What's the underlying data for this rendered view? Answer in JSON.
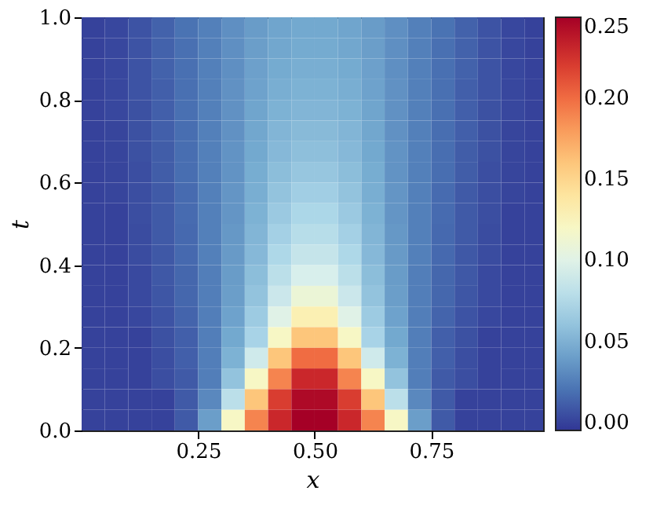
{
  "chart_data": {
    "type": "heatmap",
    "xlabel": "x",
    "ylabel": "t",
    "x": [
      0.025,
      0.075,
      0.125,
      0.175,
      0.225,
      0.275,
      0.325,
      0.375,
      0.425,
      0.475,
      0.525,
      0.575,
      0.625,
      0.675,
      0.725,
      0.775,
      0.825,
      0.875,
      0.925,
      0.975
    ],
    "y": [
      0.975,
      0.925,
      0.875,
      0.825,
      0.775,
      0.725,
      0.675,
      0.625,
      0.575,
      0.525,
      0.475,
      0.425,
      0.375,
      0.325,
      0.275,
      0.225,
      0.175,
      0.125,
      0.075,
      0.025
    ],
    "cells": [
      [
        0,
        0.002,
        0.007,
        0.013,
        0.02,
        0.026,
        0.033,
        0.039,
        0.043,
        0.045,
        0.045,
        0.043,
        0.039,
        0.033,
        0.026,
        0.02,
        0.013,
        0.007,
        0.002,
        0
      ],
      [
        0,
        0.002,
        0.007,
        0.013,
        0.019,
        0.026,
        0.033,
        0.04,
        0.044,
        0.046,
        0.046,
        0.044,
        0.04,
        0.033,
        0.026,
        0.019,
        0.013,
        0.007,
        0.002,
        0
      ],
      [
        0,
        0.002,
        0.007,
        0.013,
        0.019,
        0.026,
        0.033,
        0.041,
        0.046,
        0.048,
        0.048,
        0.046,
        0.041,
        0.033,
        0.026,
        0.019,
        0.013,
        0.007,
        0.002,
        0
      ],
      [
        0,
        0.002,
        0.007,
        0.012,
        0.019,
        0.026,
        0.034,
        0.042,
        0.048,
        0.05,
        0.05,
        0.048,
        0.042,
        0.034,
        0.026,
        0.019,
        0.012,
        0.007,
        0.002,
        0
      ],
      [
        0,
        0.002,
        0.006,
        0.012,
        0.019,
        0.026,
        0.034,
        0.043,
        0.05,
        0.052,
        0.052,
        0.05,
        0.043,
        0.034,
        0.026,
        0.019,
        0.012,
        0.006,
        0.002,
        0
      ],
      [
        0,
        0.001,
        0.006,
        0.012,
        0.018,
        0.026,
        0.034,
        0.044,
        0.052,
        0.055,
        0.055,
        0.052,
        0.044,
        0.034,
        0.026,
        0.018,
        0.012,
        0.006,
        0.001,
        0
      ],
      [
        0,
        0.001,
        0.006,
        0.011,
        0.018,
        0.026,
        0.035,
        0.045,
        0.054,
        0.058,
        0.058,
        0.054,
        0.045,
        0.035,
        0.026,
        0.018,
        0.011,
        0.006,
        0.001,
        0
      ],
      [
        0,
        0.001,
        0.005,
        0.011,
        0.018,
        0.026,
        0.035,
        0.047,
        0.057,
        0.062,
        0.062,
        0.057,
        0.047,
        0.035,
        0.026,
        0.018,
        0.011,
        0.005,
        0.001,
        0
      ],
      [
        0,
        0.001,
        0.005,
        0.01,
        0.017,
        0.026,
        0.036,
        0.048,
        0.06,
        0.067,
        0.067,
        0.06,
        0.048,
        0.036,
        0.026,
        0.017,
        0.01,
        0.005,
        0.001,
        0
      ],
      [
        0,
        0,
        0.005,
        0.01,
        0.017,
        0.026,
        0.036,
        0.05,
        0.064,
        0.072,
        0.072,
        0.064,
        0.05,
        0.036,
        0.026,
        0.017,
        0.01,
        0.005,
        0,
        0
      ],
      [
        0,
        0,
        0.004,
        0.01,
        0.016,
        0.026,
        0.037,
        0.052,
        0.068,
        0.078,
        0.078,
        0.068,
        0.052,
        0.037,
        0.026,
        0.016,
        0.01,
        0.004,
        0,
        0
      ],
      [
        0,
        0,
        0.004,
        0.009,
        0.016,
        0.026,
        0.038,
        0.054,
        0.073,
        0.085,
        0.085,
        0.073,
        0.054,
        0.038,
        0.026,
        0.016,
        0.009,
        0.004,
        0,
        0
      ],
      [
        0,
        0,
        0.003,
        0.009,
        0.015,
        0.025,
        0.039,
        0.057,
        0.08,
        0.095,
        0.095,
        0.08,
        0.057,
        0.039,
        0.025,
        0.015,
        0.009,
        0.003,
        0,
        0
      ],
      [
        0,
        0,
        0.003,
        0.008,
        0.015,
        0.025,
        0.04,
        0.06,
        0.088,
        0.11,
        0.11,
        0.088,
        0.06,
        0.04,
        0.025,
        0.015,
        0.008,
        0.003,
        0,
        0
      ],
      [
        0,
        0,
        0.002,
        0.007,
        0.014,
        0.025,
        0.042,
        0.065,
        0.1,
        0.13,
        0.13,
        0.1,
        0.065,
        0.042,
        0.025,
        0.014,
        0.007,
        0.002,
        0,
        0
      ],
      [
        0,
        0,
        0,
        0.006,
        0.012,
        0.025,
        0.045,
        0.07,
        0.12,
        0.16,
        0.16,
        0.12,
        0.07,
        0.045,
        0.025,
        0.012,
        0.006,
        0,
        0,
        0
      ],
      [
        0,
        0,
        0,
        0.005,
        0.012,
        0.025,
        0.05,
        0.09,
        0.16,
        0.2,
        0.2,
        0.16,
        0.09,
        0.05,
        0.025,
        0.012,
        0.005,
        0,
        0,
        0
      ],
      [
        0,
        0,
        0,
        0.005,
        0.01,
        0.025,
        0.06,
        0.12,
        0.19,
        0.23,
        0.23,
        0.19,
        0.12,
        0.06,
        0.025,
        0.01,
        0.005,
        0,
        0,
        0
      ],
      [
        0,
        0,
        0,
        0,
        0.01,
        0.03,
        0.08,
        0.16,
        0.22,
        0.245,
        0.245,
        0.22,
        0.16,
        0.08,
        0.03,
        0.01,
        0,
        0,
        0,
        0
      ],
      [
        0,
        0,
        0,
        0,
        0.01,
        0.04,
        0.12,
        0.19,
        0.23,
        0.25,
        0.25,
        0.23,
        0.19,
        0.12,
        0.04,
        0.01,
        0,
        0,
        0,
        0
      ]
    ],
    "xlim": [
      0.0,
      0.99
    ],
    "xticks": [
      0.25,
      {
        "value": 0.5,
        "label": "0.50"
      },
      0.75
    ],
    "ylim": [
      0.0,
      1.0
    ],
    "yticks": [
      {
        "value": 0,
        "label": "0.0"
      },
      0.2,
      0.4,
      0.6,
      0.8,
      {
        "value": 1,
        "label": "1.0"
      }
    ],
    "clim": [
      -0.005,
      0.25
    ],
    "cticks": [
      {
        "value": 0,
        "label": "0.00"
      },
      0.05,
      {
        "value": 0.1,
        "label": "0.10"
      },
      0.15,
      {
        "value": 0.2,
        "label": "0.20"
      },
      0.25
    ],
    "grid": false
  }
}
